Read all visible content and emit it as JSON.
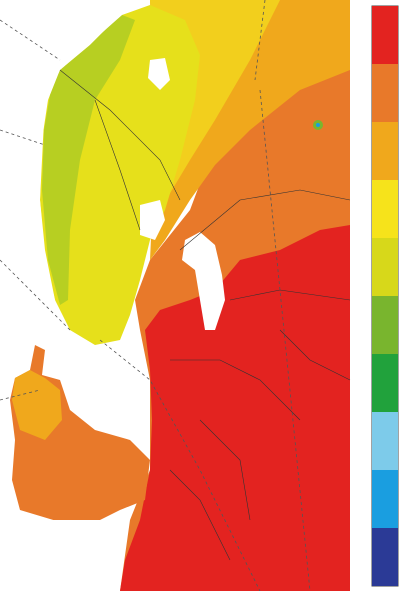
{
  "legend": {
    "colors": [
      "#e32320",
      "#e8792a",
      "#f0a81c",
      "#f6e31b",
      "#d7d81a",
      "#79b52e",
      "#21a23c",
      "#7dcbea",
      "#1a9ee0",
      "#2b3a96"
    ]
  }
}
